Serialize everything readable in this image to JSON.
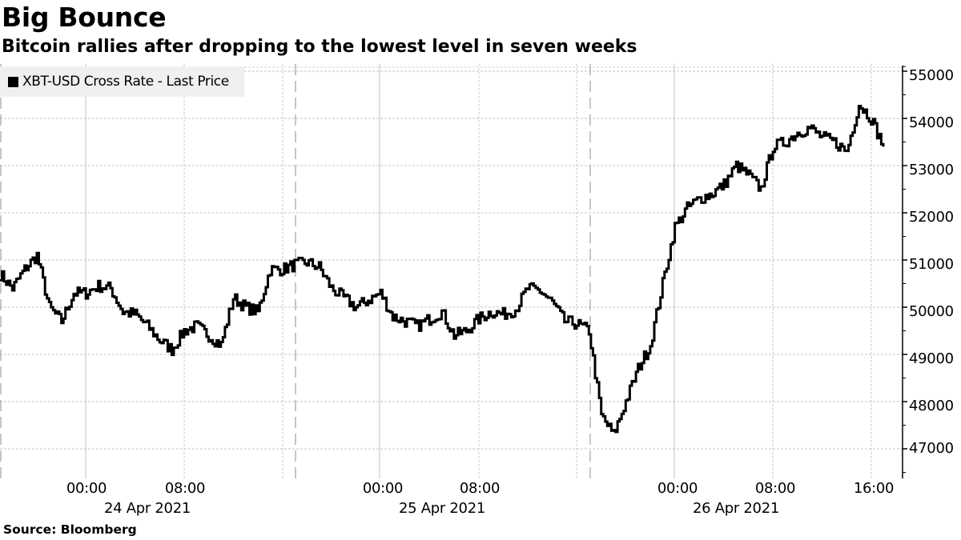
{
  "header": {
    "title": "Big Bounce",
    "subtitle": "Bitcoin rallies after dropping to the lowest level in seven weeks"
  },
  "legend": {
    "label": "XBT-USD Cross Rate - Last Price",
    "swatch_color": "#000000"
  },
  "footer": {
    "source": "Source: Bloomberg"
  },
  "axes": {
    "y_ticks": [
      "55000",
      "54000",
      "53000",
      "52000",
      "51000",
      "50000",
      "49000",
      "48000",
      "47000"
    ],
    "x_ticks": [
      "00:00",
      "08:00",
      "00:00",
      "08:00",
      "00:00",
      "08:00",
      "16:00"
    ],
    "x_dates": [
      "24 Apr 2021",
      "25 Apr 2021",
      "26 Apr 2021"
    ]
  },
  "chart_data": {
    "type": "line",
    "title": "Big Bounce",
    "subtitle": "Bitcoin rallies after dropping to the lowest level in seven weeks",
    "xlabel": "",
    "ylabel": "",
    "ylim": [
      46400,
      55200
    ],
    "y_ticks": [
      47000,
      48000,
      49000,
      50000,
      51000,
      52000,
      53000,
      54000,
      55000
    ],
    "y_axis_position": "right",
    "x_ticks": [
      "24 Apr 00:00",
      "24 Apr 08:00",
      "25 Apr 00:00",
      "25 Apr 08:00",
      "26 Apr 00:00",
      "26 Apr 08:00",
      "26 Apr 16:00"
    ],
    "x_range": [
      "23 Apr ~17:00",
      "26 Apr ~17:00"
    ],
    "grid": true,
    "legend_position": "top-left",
    "series": [
      {
        "name": "XBT-USD Cross Rate - Last Price",
        "color": "#000000",
        "x": [
          "23 Apr 17:00",
          "23 Apr 18:00",
          "23 Apr 19:00",
          "23 Apr 20:00",
          "23 Apr 21:00",
          "23 Apr 22:00",
          "23 Apr 23:00",
          "24 Apr 00:00",
          "24 Apr 01:00",
          "24 Apr 02:00",
          "24 Apr 03:00",
          "24 Apr 04:00",
          "24 Apr 05:00",
          "24 Apr 06:00",
          "24 Apr 07:00",
          "24 Apr 08:00",
          "24 Apr 09:00",
          "24 Apr 10:00",
          "24 Apr 11:00",
          "24 Apr 12:00",
          "24 Apr 13:00",
          "24 Apr 14:00",
          "24 Apr 15:00",
          "24 Apr 16:00",
          "24 Apr 17:00",
          "24 Apr 18:00",
          "24 Apr 19:00",
          "24 Apr 20:00",
          "24 Apr 21:00",
          "24 Apr 22:00",
          "24 Apr 23:00",
          "25 Apr 00:00",
          "25 Apr 01:00",
          "25 Apr 02:00",
          "25 Apr 03:00",
          "25 Apr 04:00",
          "25 Apr 05:00",
          "25 Apr 06:00",
          "25 Apr 07:00",
          "25 Apr 08:00",
          "25 Apr 09:00",
          "25 Apr 10:00",
          "25 Apr 11:00",
          "25 Apr 12:00",
          "25 Apr 13:00",
          "25 Apr 14:00",
          "25 Apr 15:00",
          "25 Apr 16:00",
          "25 Apr 17:00",
          "25 Apr 18:00",
          "25 Apr 19:00",
          "25 Apr 20:00",
          "25 Apr 21:00",
          "25 Apr 22:00",
          "25 Apr 23:00",
          "26 Apr 00:00",
          "26 Apr 01:00",
          "26 Apr 02:00",
          "26 Apr 03:00",
          "26 Apr 04:00",
          "26 Apr 05:00",
          "26 Apr 06:00",
          "26 Apr 07:00",
          "26 Apr 08:00",
          "26 Apr 09:00",
          "26 Apr 10:00",
          "26 Apr 11:00",
          "26 Apr 12:00",
          "26 Apr 13:00",
          "26 Apr 14:00",
          "26 Apr 15:00",
          "26 Apr 16:00",
          "26 Apr 17:00"
        ],
        "values": [
          50700,
          50400,
          50800,
          51100,
          50000,
          49700,
          50300,
          50300,
          50450,
          50400,
          49900,
          49850,
          49600,
          49300,
          49100,
          49500,
          49600,
          49400,
          49200,
          50200,
          50000,
          49900,
          50800,
          50800,
          50900,
          50950,
          50850,
          50400,
          50200,
          50000,
          50150,
          50300,
          49800,
          49700,
          49600,
          49750,
          49900,
          49400,
          49500,
          49750,
          49900,
          49850,
          49950,
          50400,
          50350,
          50100,
          49700,
          49650,
          49500,
          47700,
          47300,
          48000,
          48700,
          49200,
          50500,
          51700,
          52100,
          52300,
          52400,
          52600,
          53000,
          52800,
          52500,
          53400,
          53500,
          53700,
          53800,
          53600,
          53500,
          53300,
          54300,
          54000,
          53400
        ]
      }
    ],
    "annotations": {
      "low": {
        "x": "25 Apr ~18:00",
        "value": 47100
      },
      "high": {
        "x": "26 Apr ~14:00",
        "value": 54400
      }
    }
  }
}
